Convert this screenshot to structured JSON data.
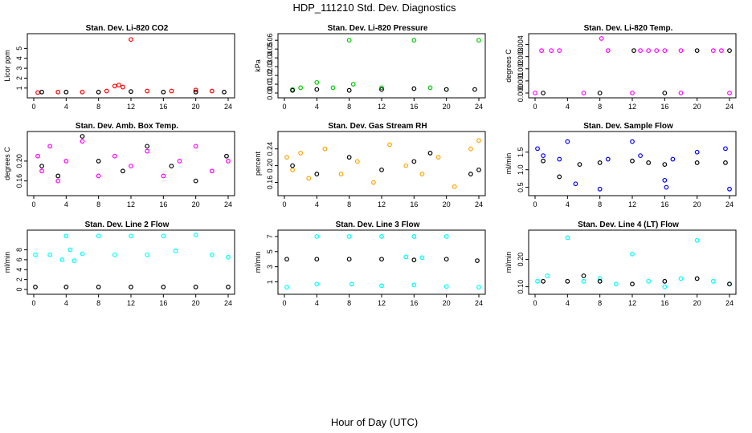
{
  "figure": {
    "title": "HDP_111210  Std. Dev. Diagnostics",
    "xlabel": "Hour of Day (UTC)"
  },
  "colors": {
    "black": "#000000",
    "red": "#ff0000",
    "green": "#00cc00",
    "magenta": "#ff00ff",
    "orange": "#ffa500",
    "blue": "#0000ff",
    "cyan": "#00ffff"
  },
  "chart_data": [
    {
      "type": "scatter",
      "title": "Stan. Dev. Li-820 CO2",
      "ylabel": "Licor ppm",
      "xlim": [
        0,
        24
      ],
      "ylim": [
        0.5,
        6
      ],
      "xticks": [
        "0",
        "4",
        "8",
        "12",
        "16",
        "20",
        "24"
      ],
      "yticks": [
        "1",
        "2",
        "3",
        "4",
        "5"
      ],
      "series": [
        {
          "color": "red",
          "points": [
            [
              0.5,
              0.55
            ],
            [
              3,
              0.6
            ],
            [
              6,
              0.6
            ],
            [
              9,
              0.7
            ],
            [
              10,
              1.2
            ],
            [
              10.5,
              1.3
            ],
            [
              11,
              1.1
            ],
            [
              12,
              5.9
            ],
            [
              14,
              0.7
            ],
            [
              17,
              0.7
            ],
            [
              20,
              0.8
            ],
            [
              22,
              0.7
            ]
          ]
        },
        {
          "color": "black",
          "points": [
            [
              1,
              0.6
            ],
            [
              4,
              0.6
            ],
            [
              8,
              0.6
            ],
            [
              12,
              0.65
            ],
            [
              16,
              0.6
            ],
            [
              20,
              0.6
            ],
            [
              23.5,
              0.6
            ]
          ]
        }
      ]
    },
    {
      "type": "scatter",
      "title": "Stan. Dev. Li-820 Pressure",
      "ylabel": "kPa",
      "xlim": [
        0,
        24
      ],
      "ylim": [
        0,
        0.062
      ],
      "xticks": [
        "0",
        "4",
        "8",
        "12",
        "16",
        "20",
        "24"
      ],
      "yticks": [
        "0.00",
        "0.01",
        "0.02",
        "0.03",
        "0.04",
        "0.05",
        "0.06"
      ],
      "series": [
        {
          "color": "green",
          "points": [
            [
              1,
              0.004
            ],
            [
              2,
              0.006
            ],
            [
              4,
              0.012
            ],
            [
              6,
              0.006
            ],
            [
              8,
              0.06
            ],
            [
              8.5,
              0.01
            ],
            [
              12,
              0.006
            ],
            [
              16,
              0.06
            ],
            [
              18,
              0.006
            ],
            [
              20,
              0.004
            ],
            [
              24,
              0.06
            ]
          ]
        },
        {
          "color": "black",
          "points": [
            [
              1,
              0.003
            ],
            [
              4,
              0.004
            ],
            [
              8,
              0.003
            ],
            [
              12,
              0.004
            ],
            [
              16,
              0.005
            ],
            [
              20,
              0.004
            ],
            [
              23.5,
              0.004
            ]
          ]
        }
      ]
    },
    {
      "type": "scatter",
      "title": "Stan. Dev. Li-820 Temp.",
      "ylabel": "degrees C",
      "xlim": [
        0,
        24
      ],
      "ylim": [
        0,
        0.0045
      ],
      "xticks": [
        "0",
        "4",
        "8",
        "12",
        "16",
        "20",
        "24"
      ],
      "yticks": [
        "0.000",
        "0.001",
        "0.002",
        "0.003",
        "0.004"
      ],
      "series": [
        {
          "color": "magenta",
          "points": [
            [
              0.8,
              0.0035
            ],
            [
              2,
              0.0035
            ],
            [
              3,
              0.0035
            ],
            [
              8.2,
              0.0045
            ],
            [
              9,
              0.0035
            ],
            [
              13,
              0.0035
            ],
            [
              14,
              0.0035
            ],
            [
              15,
              0.0035
            ],
            [
              16,
              0.0035
            ],
            [
              18,
              0.0035
            ],
            [
              22,
              0.0035
            ],
            [
              23,
              0.0035
            ],
            [
              0,
              0
            ],
            [
              6,
              0
            ],
            [
              12,
              0
            ],
            [
              18,
              0
            ],
            [
              24,
              0
            ]
          ]
        },
        {
          "color": "black",
          "points": [
            [
              1,
              0
            ],
            [
              8,
              0
            ],
            [
              12.2,
              0.0035
            ],
            [
              16,
              0
            ],
            [
              20,
              0.0035
            ],
            [
              24,
              0.0035
            ]
          ]
        }
      ]
    },
    {
      "type": "scatter",
      "title": "Stan. Dev. Amb. Box Temp.",
      "ylabel": "degrees C",
      "xlim": [
        0,
        24
      ],
      "ylim": [
        0.14,
        0.25
      ],
      "xticks": [
        "0",
        "4",
        "8",
        "12",
        "16",
        "20",
        "24"
      ],
      "yticks": [
        "0.16",
        "0.20"
      ],
      "series": [
        {
          "color": "magenta",
          "points": [
            [
              0.5,
              0.21
            ],
            [
              1,
              0.18
            ],
            [
              2,
              0.23
            ],
            [
              3,
              0.16
            ],
            [
              4,
              0.2
            ],
            [
              6,
              0.24
            ],
            [
              8,
              0.17
            ],
            [
              10,
              0.21
            ],
            [
              12,
              0.19
            ],
            [
              14,
              0.22
            ],
            [
              16,
              0.17
            ],
            [
              18,
              0.2
            ],
            [
              20,
              0.23
            ],
            [
              22,
              0.18
            ],
            [
              24,
              0.2
            ]
          ]
        },
        {
          "color": "black",
          "points": [
            [
              1,
              0.19
            ],
            [
              3,
              0.17
            ],
            [
              6,
              0.25
            ],
            [
              8,
              0.2
            ],
            [
              11,
              0.18
            ],
            [
              14,
              0.23
            ],
            [
              17,
              0.19
            ],
            [
              20,
              0.16
            ],
            [
              23.8,
              0.21
            ]
          ]
        }
      ]
    },
    {
      "type": "scatter",
      "title": "Stan. Dev. Gas Stream RH",
      "ylabel": "percent",
      "xlim": [
        0,
        24
      ],
      "ylim": [
        0.14,
        0.27
      ],
      "xticks": [
        "0",
        "4",
        "8",
        "12",
        "16",
        "20",
        "24"
      ],
      "yticks": [
        "0.16",
        "0.20",
        "0.24"
      ],
      "series": [
        {
          "color": "orange",
          "points": [
            [
              0.3,
              0.22
            ],
            [
              1,
              0.19
            ],
            [
              2,
              0.23
            ],
            [
              3,
              0.17
            ],
            [
              5,
              0.24
            ],
            [
              7,
              0.18
            ],
            [
              9,
              0.21
            ],
            [
              11,
              0.16
            ],
            [
              13,
              0.25
            ],
            [
              15,
              0.2
            ],
            [
              17,
              0.18
            ],
            [
              19,
              0.22
            ],
            [
              21,
              0.15
            ],
            [
              23,
              0.24
            ],
            [
              24,
              0.26
            ]
          ]
        },
        {
          "color": "black",
          "points": [
            [
              1,
              0.2
            ],
            [
              4,
              0.18
            ],
            [
              8,
              0.22
            ],
            [
              12,
              0.19
            ],
            [
              16,
              0.21
            ],
            [
              18,
              0.23
            ],
            [
              23,
              0.18
            ],
            [
              24,
              0.19
            ]
          ]
        }
      ]
    },
    {
      "type": "scatter",
      "title": "Stan. Dev. Sample Flow",
      "ylabel": "ml/min",
      "xlim": [
        0,
        24
      ],
      "ylim": [
        0.4,
        1.95
      ],
      "xticks": [
        "0",
        "4",
        "8",
        "12",
        "16",
        "20",
        "24"
      ],
      "yticks": [
        "0.5",
        "1.0",
        "1.5"
      ],
      "series": [
        {
          "color": "blue",
          "points": [
            [
              0.3,
              1.6
            ],
            [
              1,
              1.4
            ],
            [
              3,
              1.3
            ],
            [
              4,
              1.8
            ],
            [
              5,
              0.6
            ],
            [
              8,
              0.45
            ],
            [
              9,
              1.3
            ],
            [
              12,
              1.8
            ],
            [
              13,
              1.4
            ],
            [
              16,
              0.7
            ],
            [
              16.2,
              0.5
            ],
            [
              17,
              1.3
            ],
            [
              20,
              1.5
            ],
            [
              23.5,
              1.6
            ],
            [
              24,
              0.45
            ]
          ]
        },
        {
          "color": "black",
          "points": [
            [
              1,
              1.25
            ],
            [
              3,
              0.8
            ],
            [
              5.5,
              1.15
            ],
            [
              8,
              1.2
            ],
            [
              12,
              1.25
            ],
            [
              14,
              1.2
            ],
            [
              16,
              1.15
            ],
            [
              20,
              1.2
            ],
            [
              23.5,
              1.2
            ]
          ]
        }
      ]
    },
    {
      "type": "scatter",
      "title": "Stan. Dev. Line 2 Flow",
      "ylabel": "ml/min",
      "xlim": [
        0,
        24
      ],
      "ylim": [
        0,
        11
      ],
      "xticks": [
        "0",
        "4",
        "8",
        "12",
        "16",
        "20",
        "24"
      ],
      "yticks": [
        "0",
        "2",
        "4",
        "6",
        "8"
      ],
      "series": [
        {
          "color": "cyan",
          "points": [
            [
              0.2,
              7
            ],
            [
              2,
              7
            ],
            [
              3.5,
              6
            ],
            [
              4,
              10.8
            ],
            [
              4.5,
              8
            ],
            [
              5,
              5.8
            ],
            [
              6,
              7.2
            ],
            [
              8,
              10.8
            ],
            [
              10,
              7
            ],
            [
              12,
              10.8
            ],
            [
              14,
              7
            ],
            [
              16,
              10.8
            ],
            [
              17.5,
              7.8
            ],
            [
              20,
              11
            ],
            [
              22,
              7
            ],
            [
              24,
              6.5
            ]
          ]
        },
        {
          "color": "black",
          "points": [
            [
              0.2,
              0.5
            ],
            [
              4,
              0.5
            ],
            [
              8,
              0.5
            ],
            [
              12,
              0.5
            ],
            [
              16,
              0.5
            ],
            [
              20,
              0.5
            ],
            [
              24,
              0.5
            ]
          ]
        }
      ]
    },
    {
      "type": "scatter",
      "title": "Stan. Dev. Line 3 Flow",
      "ylabel": "ml/min",
      "xlim": [
        0,
        24
      ],
      "ylim": [
        0,
        7.2
      ],
      "xticks": [
        "0",
        "4",
        "8",
        "12",
        "16",
        "20",
        "24"
      ],
      "yticks": [
        "1",
        "3",
        "5",
        "7"
      ],
      "series": [
        {
          "color": "cyan",
          "points": [
            [
              0.3,
              0.3
            ],
            [
              4,
              7
            ],
            [
              4,
              0.7
            ],
            [
              8,
              7
            ],
            [
              8.3,
              0.7
            ],
            [
              12,
              7
            ],
            [
              12,
              0.5
            ],
            [
              16,
              7
            ],
            [
              16,
              0.6
            ],
            [
              20,
              7
            ],
            [
              20,
              0.4
            ],
            [
              24,
              0.3
            ],
            [
              15,
              4.3
            ],
            [
              17,
              4.2
            ]
          ]
        },
        {
          "color": "black",
          "points": [
            [
              0.3,
              4
            ],
            [
              4,
              4
            ],
            [
              8,
              4
            ],
            [
              12,
              4
            ],
            [
              16,
              3.9
            ],
            [
              20,
              4
            ],
            [
              23.8,
              3.8
            ]
          ]
        }
      ]
    },
    {
      "type": "scatter",
      "title": "Stan. Dev. Line 4 (LT) Flow",
      "ylabel": "ml/min",
      "xlim": [
        0,
        24
      ],
      "ylim": [
        0.09,
        0.29
      ],
      "xticks": [
        "0",
        "4",
        "8",
        "12",
        "16",
        "20",
        "24"
      ],
      "yticks": [
        "0.10",
        "0.20"
      ],
      "series": [
        {
          "color": "cyan",
          "points": [
            [
              0.3,
              0.12
            ],
            [
              1.5,
              0.14
            ],
            [
              4,
              0.28
            ],
            [
              6,
              0.12
            ],
            [
              8,
              0.13
            ],
            [
              10,
              0.11
            ],
            [
              12,
              0.22
            ],
            [
              14,
              0.12
            ],
            [
              16,
              0.1
            ],
            [
              18,
              0.13
            ],
            [
              20,
              0.27
            ],
            [
              22,
              0.12
            ],
            [
              24,
              0.11
            ]
          ]
        },
        {
          "color": "black",
          "points": [
            [
              1,
              0.12
            ],
            [
              4,
              0.12
            ],
            [
              6,
              0.14
            ],
            [
              8,
              0.12
            ],
            [
              12,
              0.11
            ],
            [
              16,
              0.12
            ],
            [
              20,
              0.13
            ],
            [
              24,
              0.11
            ]
          ]
        }
      ]
    }
  ]
}
